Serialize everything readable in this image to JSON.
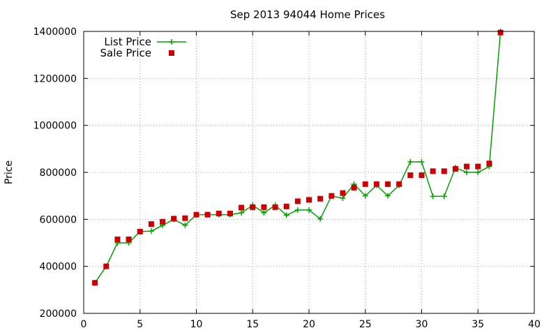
{
  "chart_data": {
    "type": "line",
    "title": "Sep 2013 94044 Home Prices",
    "xlabel": "",
    "ylabel": "Price",
    "xlim": [
      0,
      40
    ],
    "ylim": [
      200000,
      1400000
    ],
    "x_ticks": [
      0,
      5,
      10,
      15,
      20,
      25,
      30,
      35,
      40
    ],
    "y_ticks": [
      200000,
      400000,
      600000,
      800000,
      1000000,
      1200000,
      1400000
    ],
    "grid": true,
    "legend_position": "top-left",
    "series": [
      {
        "name": "List Price",
        "style": "line-plus",
        "color": "#00a000",
        "points": [
          [
            1,
            330000
          ],
          [
            2,
            400000
          ],
          [
            3,
            500000
          ],
          [
            4,
            500000
          ],
          [
            5,
            548000
          ],
          [
            6,
            550000
          ],
          [
            7,
            575000
          ],
          [
            8,
            600000
          ],
          [
            9,
            575000
          ],
          [
            10,
            620000
          ],
          [
            11,
            620000
          ],
          [
            12,
            620000
          ],
          [
            13,
            620000
          ],
          [
            14,
            628000
          ],
          [
            15,
            660000
          ],
          [
            16,
            628000
          ],
          [
            17,
            660000
          ],
          [
            18,
            618000
          ],
          [
            19,
            640000
          ],
          [
            20,
            640000
          ],
          [
            21,
            602000
          ],
          [
            22,
            700000
          ],
          [
            23,
            690000
          ],
          [
            24,
            750000
          ],
          [
            25,
            700000
          ],
          [
            26,
            745000
          ],
          [
            27,
            700000
          ],
          [
            28,
            745000
          ],
          [
            29,
            845000
          ],
          [
            30,
            845000
          ],
          [
            31,
            698000
          ],
          [
            32,
            698000
          ],
          [
            33,
            820000
          ],
          [
            34,
            800000
          ],
          [
            35,
            800000
          ],
          [
            36,
            825000
          ],
          [
            37,
            1400000
          ]
        ]
      },
      {
        "name": "Sale Price",
        "style": "square",
        "color": "#cc0000",
        "points": [
          [
            1,
            330000
          ],
          [
            2,
            400000
          ],
          [
            3,
            515000
          ],
          [
            4,
            515000
          ],
          [
            5,
            548000
          ],
          [
            6,
            580000
          ],
          [
            7,
            590000
          ],
          [
            8,
            603000
          ],
          [
            9,
            605000
          ],
          [
            10,
            620000
          ],
          [
            11,
            620000
          ],
          [
            12,
            625000
          ],
          [
            13,
            625000
          ],
          [
            14,
            650000
          ],
          [
            15,
            652000
          ],
          [
            16,
            652000
          ],
          [
            17,
            652000
          ],
          [
            18,
            655000
          ],
          [
            19,
            677000
          ],
          [
            20,
            683000
          ],
          [
            21,
            688000
          ],
          [
            22,
            700000
          ],
          [
            23,
            712000
          ],
          [
            24,
            735000
          ],
          [
            25,
            750000
          ],
          [
            26,
            750000
          ],
          [
            27,
            750000
          ],
          [
            28,
            750000
          ],
          [
            29,
            788000
          ],
          [
            30,
            788000
          ],
          [
            31,
            805000
          ],
          [
            32,
            805000
          ],
          [
            33,
            815000
          ],
          [
            34,
            825000
          ],
          [
            35,
            825000
          ],
          [
            36,
            838000
          ],
          [
            37,
            1395000
          ]
        ]
      }
    ]
  }
}
